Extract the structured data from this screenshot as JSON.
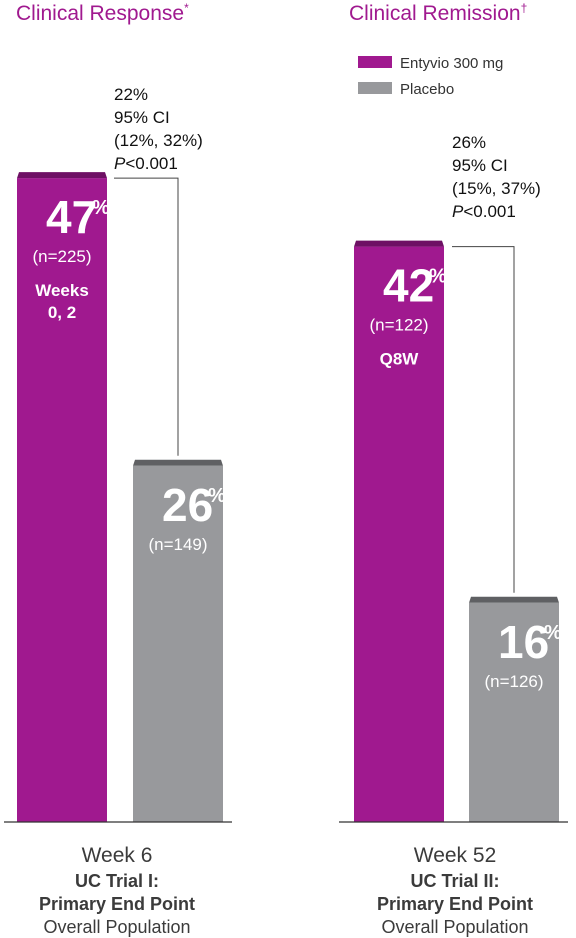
{
  "colors": {
    "entyvio": "#a0198f",
    "entyvio_top": "#6e1064",
    "placebo": "#98999c",
    "placebo_top": "#5f6063",
    "title": "#a0198f"
  },
  "legend": [
    {
      "label": "Entyvio 300 mg",
      "color": "#a0198f"
    },
    {
      "label": "Placebo",
      "color": "#98999c"
    }
  ],
  "chart_data": [
    {
      "type": "bar",
      "title": "Clinical Response",
      "title_mark": "*",
      "categories": [
        "Entyvio 300 mg",
        "Placebo"
      ],
      "values": [
        47,
        26
      ],
      "value_suffix": "%",
      "n_labels": [
        "(n=225)",
        "(n=149)"
      ],
      "dose_labels": [
        "Weeks",
        "0, 2"
      ],
      "difference": {
        "value": "22%",
        "ci": "95% CI",
        "ci_range": "(12%, 32%)",
        "p_label": "P",
        "p_value": "<0.001"
      },
      "caption": {
        "week": "Week 6",
        "trial": "UC Trial I:",
        "endpoint": "Primary End Point",
        "population": "Overall Population"
      },
      "ylim": [
        0,
        50
      ]
    },
    {
      "type": "bar",
      "title": "Clinical Remission",
      "title_mark": "†",
      "categories": [
        "Entyvio 300 mg",
        "Placebo"
      ],
      "values": [
        42,
        16
      ],
      "value_suffix": "%",
      "n_labels": [
        "(n=122)",
        "(n=126)"
      ],
      "dose_labels": [
        "Q8W"
      ],
      "difference": {
        "value": "26%",
        "ci": "95% CI",
        "ci_range": "(15%, 37%)",
        "p_label": "P",
        "p_value": "<0.001"
      },
      "caption": {
        "week": "Week 52",
        "trial": "UC Trial II:",
        "endpoint": "Primary End Point",
        "population": "Overall Population"
      },
      "ylim": [
        0,
        50
      ]
    }
  ]
}
